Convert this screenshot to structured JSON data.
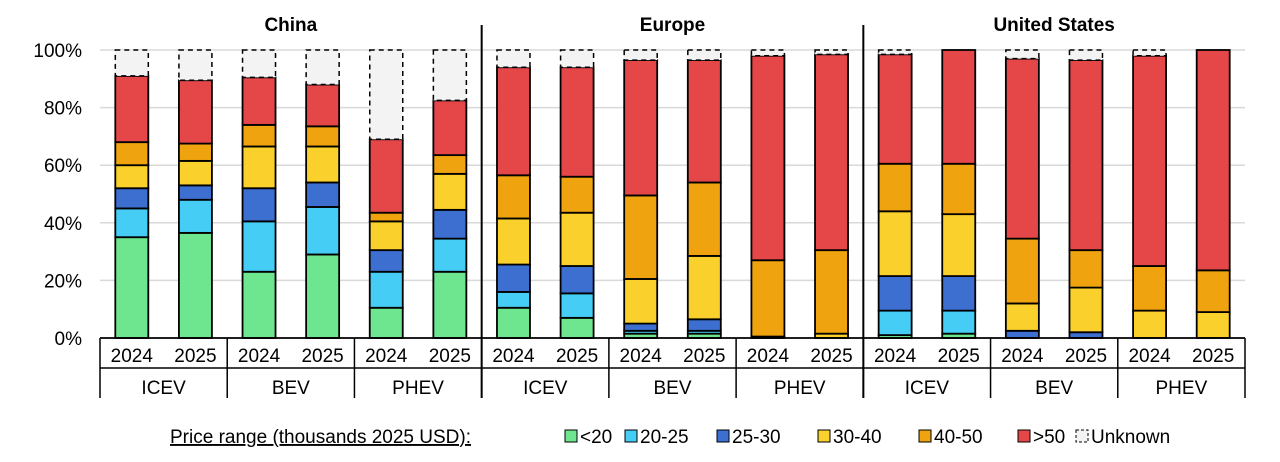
{
  "chart_data": {
    "type": "bar",
    "stacked": true,
    "yticks": [
      "0%",
      "20%",
      "40%",
      "60%",
      "80%",
      "100%"
    ],
    "ylim": [
      0,
      100
    ],
    "grid": true,
    "legend_position": "bottom",
    "legend_title": "Price range (thousands 2025 USD):",
    "segments": [
      {
        "key": "lt20",
        "name": "<20",
        "color": "#6ee58f"
      },
      {
        "key": "20_25",
        "name": "20-25",
        "color": "#45cdf5"
      },
      {
        "key": "25_30",
        "name": "25-30",
        "color": "#3d6fd1"
      },
      {
        "key": "30_40",
        "name": "30-40",
        "color": "#f9d02c"
      },
      {
        "key": "40_50",
        "name": "40-50",
        "color": "#efa30f"
      },
      {
        "key": "gt50",
        "name": ">50",
        "color": "#e54648"
      },
      {
        "key": "unknown",
        "name": "Unknown",
        "color": "#f3f3f3"
      }
    ],
    "regions": [
      {
        "name": "China",
        "groups": [
          {
            "name": "ICEV",
            "bars": [
              {
                "year": "2024",
                "values": [
                  35,
                  10,
                  7,
                  8,
                  8,
                  23,
                  9
                ]
              },
              {
                "year": "2025",
                "values": [
                  36.5,
                  11.5,
                  5,
                  8.5,
                  6,
                  22,
                  10.5
                ]
              }
            ]
          },
          {
            "name": "BEV",
            "bars": [
              {
                "year": "2024",
                "values": [
                  23,
                  17.5,
                  11.5,
                  14.5,
                  7.5,
                  16.5,
                  9.5
                ]
              },
              {
                "year": "2025",
                "values": [
                  29,
                  16.5,
                  8.5,
                  12.5,
                  7,
                  14.5,
                  12
                ]
              }
            ]
          },
          {
            "name": "PHEV",
            "bars": [
              {
                "year": "2024",
                "values": [
                  10.5,
                  12.5,
                  7.5,
                  10,
                  3,
                  25.5,
                  31
                ]
              },
              {
                "year": "2025",
                "values": [
                  23,
                  11.5,
                  10,
                  12.5,
                  6.5,
                  19,
                  17.5
                ]
              }
            ]
          }
        ]
      },
      {
        "name": "Europe",
        "groups": [
          {
            "name": "ICEV",
            "bars": [
              {
                "year": "2024",
                "values": [
                  10.5,
                  5.5,
                  9.5,
                  16,
                  15,
                  37.5,
                  6
                ]
              },
              {
                "year": "2025",
                "values": [
                  7,
                  8.5,
                  9.5,
                  18.5,
                  12.5,
                  38,
                  6
                ]
              }
            ]
          },
          {
            "name": "BEV",
            "bars": [
              {
                "year": "2024",
                "values": [
                  1.5,
                  1,
                  2.5,
                  15.5,
                  29,
                  47,
                  3.5
                ]
              },
              {
                "year": "2025",
                "values": [
                  1.5,
                  1,
                  4,
                  22,
                  25.5,
                  42.5,
                  3.5
                ]
              }
            ]
          },
          {
            "name": "PHEV",
            "bars": [
              {
                "year": "2024",
                "values": [
                  0,
                  0,
                  0,
                  0.5,
                  26.5,
                  71,
                  2
                ]
              },
              {
                "year": "2025",
                "values": [
                  0,
                  0,
                  0,
                  1.5,
                  29,
                  68,
                  1.5
                ]
              }
            ]
          }
        ]
      },
      {
        "name": "United States",
        "groups": [
          {
            "name": "ICEV",
            "bars": [
              {
                "year": "2024",
                "values": [
                  1,
                  8.5,
                  12,
                  22.5,
                  16.5,
                  38,
                  1.5
                ]
              },
              {
                "year": "2025",
                "values": [
                  1.5,
                  8,
                  12,
                  21.5,
                  17.5,
                  39.5,
                  0
                ]
              }
            ]
          },
          {
            "name": "BEV",
            "bars": [
              {
                "year": "2024",
                "values": [
                  0,
                  0,
                  2.5,
                  9.5,
                  22.5,
                  62.5,
                  3
                ]
              },
              {
                "year": "2025",
                "values": [
                  0,
                  0,
                  2,
                  15.5,
                  13,
                  66,
                  3.5
                ]
              }
            ]
          },
          {
            "name": "PHEV",
            "bars": [
              {
                "year": "2024",
                "values": [
                  0,
                  0,
                  0,
                  9.5,
                  15.5,
                  73,
                  2
                ]
              },
              {
                "year": "2025",
                "values": [
                  0,
                  0,
                  0,
                  9,
                  14.5,
                  76.5,
                  0
                ]
              }
            ]
          }
        ]
      }
    ]
  }
}
